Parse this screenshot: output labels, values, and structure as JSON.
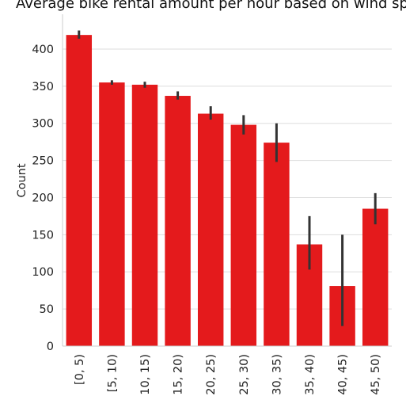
{
  "chart_data": {
    "type": "bar",
    "title": "Average bike rental amount per hour based on wind sp",
    "xlabel": "",
    "ylabel": "Count",
    "ylim": [
      0,
      445
    ],
    "yticks": [
      0,
      50,
      100,
      150,
      200,
      250,
      300,
      350,
      400
    ],
    "categories": [
      "[0, 5)",
      "[5, 10)",
      "[10, 15)",
      "[15, 20)",
      "[20, 25)",
      "[25, 30)",
      "[30, 35)",
      "[35, 40)",
      "[40, 45)",
      "[45, 50)"
    ],
    "values": [
      419,
      355,
      352,
      337,
      313,
      298,
      274,
      137,
      81,
      185
    ],
    "error_low": [
      414,
      352,
      348,
      332,
      305,
      285,
      248,
      103,
      27,
      164
    ],
    "error_high": [
      425,
      358,
      356,
      343,
      323,
      311,
      300,
      175,
      150,
      206
    ],
    "bar_color": "#e41a1c",
    "errorbar_color": "#333333",
    "grid": "y",
    "legend": "none"
  }
}
